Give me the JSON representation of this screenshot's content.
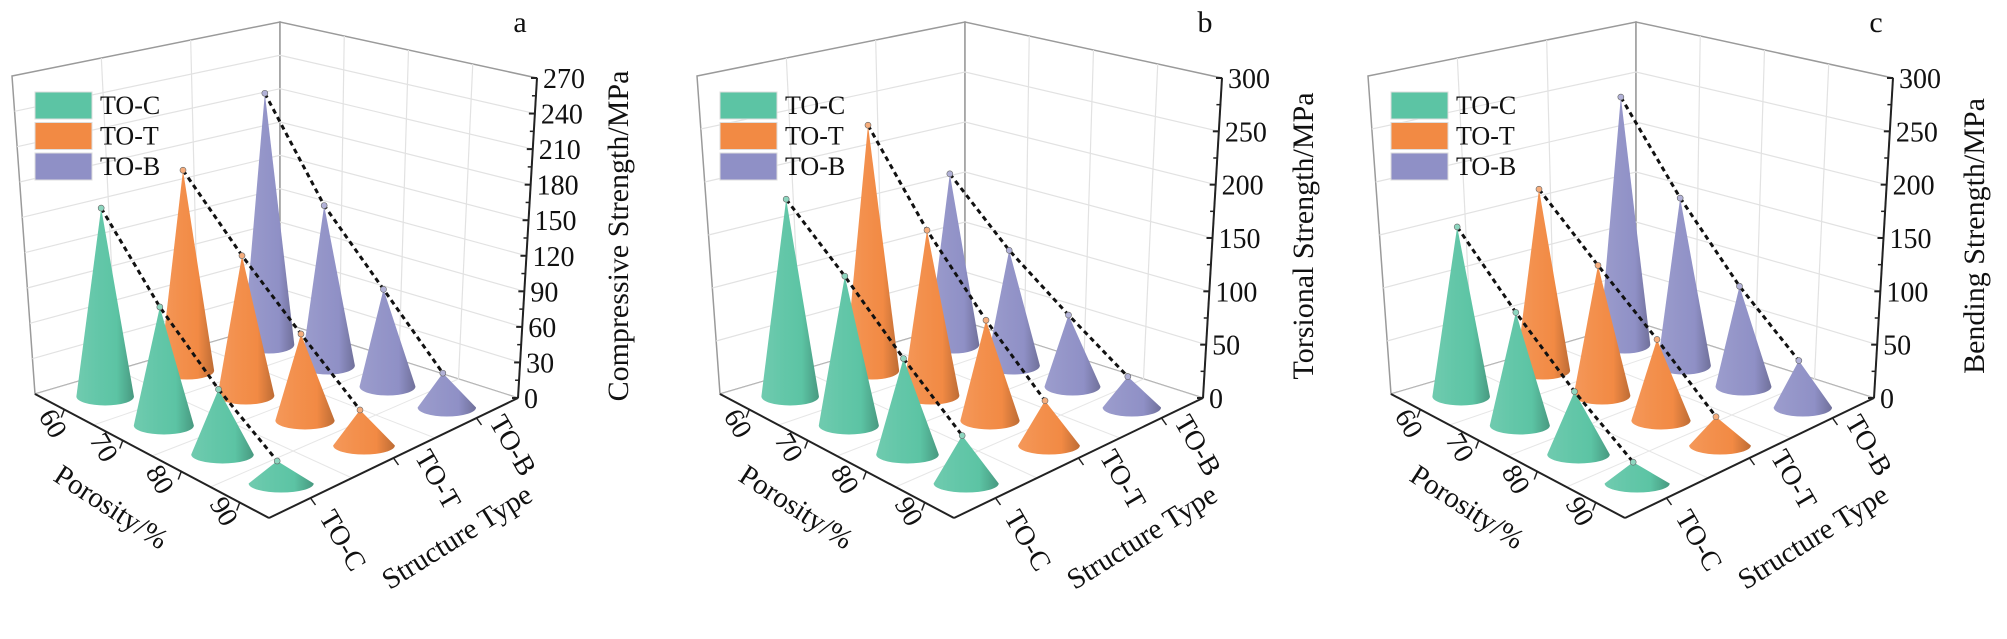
{
  "legend": [
    "TO-C",
    "TO-T",
    "TO-B"
  ],
  "colors": {
    "TO-C": "#5cc4a4",
    "TO-T": "#f28a44",
    "TO-B": "#8f90c6"
  },
  "chart_data": [
    {
      "type": "3d-cone",
      "panel_label": "a",
      "x_label": "Porosity/%",
      "x": [
        "60",
        "70",
        "80",
        "90"
      ],
      "y_label": "Structure Type",
      "y": [
        "TO-C",
        "TO-T",
        "TO-B"
      ],
      "z_label": "Compressive Strength/MPa",
      "zlim": [
        0,
        270
      ],
      "z_ticks": [
        "0",
        "30",
        "60",
        "90",
        "120",
        "150",
        "180",
        "210",
        "240",
        "270"
      ],
      "series": [
        {
          "name": "TO-C",
          "values": [
            159,
            100,
            55,
            19
          ]
        },
        {
          "name": "TO-T",
          "values": [
            169,
            118,
            73,
            30
          ]
        },
        {
          "name": "TO-B",
          "values": [
            212,
            135,
            82,
            29
          ]
        }
      ],
      "grid": true,
      "legend_position": "top-left"
    },
    {
      "type": "3d-cone",
      "panel_label": "b",
      "x_label": "Porosity/%",
      "x": [
        "60",
        "70",
        "80",
        "90"
      ],
      "y_label": "Structure Type",
      "y": [
        "TO-C",
        "TO-T",
        "TO-B"
      ],
      "z_label": "Torsional Strength/MPa",
      "zlim": [
        0,
        300
      ],
      "z_ticks": [
        "0",
        "50",
        "100",
        "150",
        "200",
        "250",
        "300"
      ],
      "series": [
        {
          "name": "TO-C",
          "values": [
            185,
            140,
            90,
            45
          ]
        },
        {
          "name": "TO-T",
          "values": [
            230,
            155,
            94,
            42
          ]
        },
        {
          "name": "TO-B",
          "values": [
            160,
            108,
            67,
            29
          ]
        }
      ],
      "grid": true,
      "legend_position": "top-left"
    },
    {
      "type": "3d-cone",
      "panel_label": "c",
      "x_label": "Porosity/%",
      "x": [
        "60",
        "70",
        "80",
        "90"
      ],
      "y_label": "Structure Type",
      "y": [
        "TO-C",
        "TO-T",
        "TO-B"
      ],
      "z_label": "Bending Strength/MPa",
      "zlim": [
        0,
        300
      ],
      "z_ticks": [
        "0",
        "50",
        "100",
        "150",
        "200",
        "250",
        "300"
      ],
      "series": [
        {
          "name": "TO-C",
          "values": [
            159,
            106,
            59,
            20
          ]
        },
        {
          "name": "TO-T",
          "values": [
            170,
            122,
            76,
            27
          ]
        },
        {
          "name": "TO-B",
          "values": [
            232,
            157,
            94,
            44
          ]
        }
      ],
      "grid": true,
      "legend_position": "top-left"
    }
  ]
}
